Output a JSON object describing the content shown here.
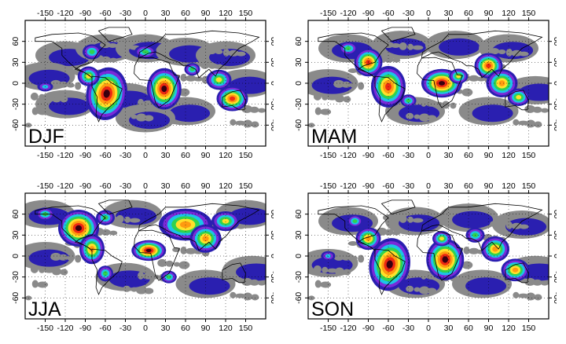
{
  "figure": {
    "lon_ticks": [
      "-150",
      "-120",
      "-90",
      "-60",
      "-30",
      "0",
      "30",
      "60",
      "90",
      "120",
      "150"
    ],
    "lat_ticks": [
      "60",
      "30",
      "0",
      "-30",
      "-60"
    ],
    "colors": {
      "low": "#8a8a8a",
      "level1": "#2a1fb0",
      "level2": "#7a2ad8",
      "level3": "#1bc4e8",
      "level4": "#2fd24f",
      "level5": "#ffe02a",
      "level6": "#ff9a10",
      "level7": "#ee2a12",
      "high": "#3a0010"
    },
    "panels": [
      {
        "id": "djf",
        "label": "DJF"
      },
      {
        "id": "mam",
        "label": "MAM"
      },
      {
        "id": "jja",
        "label": "JJA"
      },
      {
        "id": "son",
        "label": "SON"
      }
    ]
  }
}
